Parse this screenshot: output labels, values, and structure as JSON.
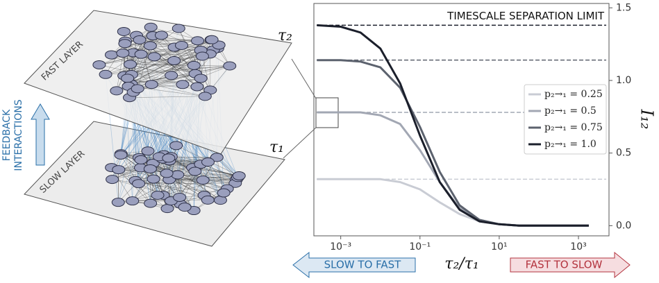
{
  "chart_data": {
    "type": "line",
    "x_label": "τ₂/τ₁",
    "y_label": "I₁₂",
    "x": [
      0.000251,
      0.001,
      0.00316,
      0.01,
      0.0316,
      0.1,
      0.316,
      1,
      3.16,
      10,
      31.6,
      100,
      1000,
      1820
    ],
    "series": [
      {
        "name": "p₂→₁ = 0.25",
        "color": "#c9ccd4",
        "values": [
          0.32,
          0.32,
          0.32,
          0.32,
          0.3,
          0.25,
          0.16,
          0.08,
          0.03,
          0.01,
          0,
          0,
          0,
          0
        ]
      },
      {
        "name": "p₂→₁ = 0.5",
        "color": "#a2a7b3",
        "values": [
          0.78,
          0.78,
          0.78,
          0.76,
          0.7,
          0.52,
          0.3,
          0.12,
          0.04,
          0.01,
          0,
          0,
          0,
          0
        ]
      },
      {
        "name": "p₂→₁ = 0.75",
        "color": "#5c626e",
        "values": [
          1.14,
          1.14,
          1.13,
          1.09,
          0.95,
          0.68,
          0.37,
          0.14,
          0.04,
          0.01,
          0,
          0,
          0,
          0
        ]
      },
      {
        "name": "p₂→₁ = 1.0",
        "color": "#1b1f2b",
        "values": [
          1.38,
          1.37,
          1.33,
          1.22,
          0.98,
          0.62,
          0.3,
          0.11,
          0.03,
          0.01,
          0,
          0,
          0,
          0
        ]
      }
    ],
    "reference_lines": [
      {
        "value": 0.32,
        "color": "#c9ccd4"
      },
      {
        "value": 0.78,
        "color": "#a2a7b3"
      },
      {
        "value": 1.14,
        "color": "#5c626e"
      },
      {
        "value": 1.38,
        "color": "#1b1f2b",
        "label": "TIMESCALE SEPARATION LIMIT"
      }
    ],
    "log_x": true,
    "xlim": [
      0.00021,
      5900
    ],
    "xticks": [
      {
        "value": 0.001,
        "label": "10⁻³"
      },
      {
        "value": 0.1,
        "label": "10⁻¹"
      },
      {
        "value": 10,
        "label": "10¹"
      },
      {
        "value": 1000,
        "label": "10³"
      }
    ],
    "ylim": [
      -0.07,
      1.53
    ],
    "yticks": [
      {
        "value": 0,
        "label": "0.0"
      },
      {
        "value": 0.5,
        "label": "0.5"
      },
      {
        "value": 1,
        "label": "1.0"
      },
      {
        "value": 1.5,
        "label": "1.5"
      }
    ],
    "y_axis_side": "right",
    "legend": "center right",
    "arrows": {
      "left": "SLOW TO FAST",
      "right": "FAST TO SLOW"
    }
  },
  "diagram": {
    "fast_layer": "FAST LAYER",
    "slow_layer": "SLOW LAYER",
    "tau_fast": "τ₂",
    "tau_slow": "τ₁",
    "feedback": [
      "FEEDBACK",
      "INTERACTIONS"
    ]
  }
}
